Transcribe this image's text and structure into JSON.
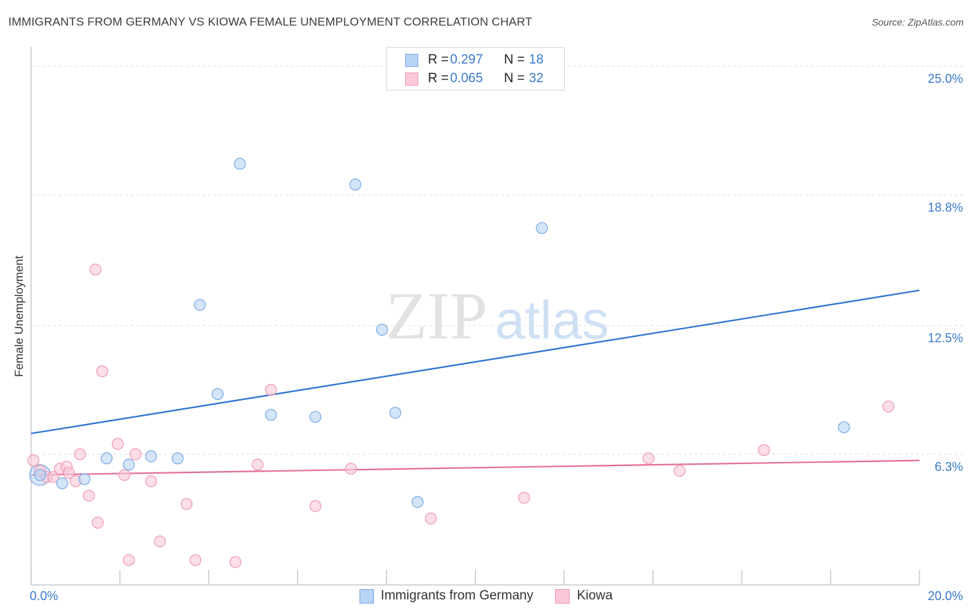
{
  "title": "IMMIGRANTS FROM GERMANY VS KIOWA FEMALE UNEMPLOYMENT CORRELATION CHART",
  "source": "Source: ZipAtlas.com",
  "watermark": {
    "zip": "ZIP",
    "atlas": "atlas"
  },
  "legend": {
    "r_label": "R =",
    "n_label": "N =",
    "series": [
      {
        "name": "Immigrants from Germany",
        "r": "0.297",
        "n": "18"
      },
      {
        "name": "Kiowa",
        "r": "0.065",
        "n": "32"
      }
    ]
  },
  "colors": {
    "germany_fill": "#b8d3f5",
    "germany_stroke": "#7aaae3",
    "germany_line": "#2f74d0",
    "kiowa_fill": "#f9c8d6",
    "kiowa_stroke": "#ee9ab4",
    "kiowa_line": "#e4709a",
    "axis_text": "#3a79cc"
  },
  "chart_data": {
    "type": "scatter",
    "title": "IMMIGRANTS FROM GERMANY VS KIOWA FEMALE UNEMPLOYMENT CORRELATION CHART",
    "xlabel": "",
    "ylabel": "Female Unemployment",
    "xlim": [
      0,
      20
    ],
    "ylim": [
      0,
      25.6
    ],
    "x_tick_labels": {
      "min": "0.0%",
      "max": "20.0%"
    },
    "y_ticks": [
      {
        "value": 6.3,
        "label": "6.3%"
      },
      {
        "value": 12.5,
        "label": "12.5%"
      },
      {
        "value": 18.8,
        "label": "18.8%"
      },
      {
        "value": 25.0,
        "label": "25.0%"
      }
    ],
    "series": [
      {
        "name": "Immigrants from Germany",
        "points": [
          {
            "x": 0.2,
            "y": 5.3
          },
          {
            "x": 0.7,
            "y": 4.9
          },
          {
            "x": 1.2,
            "y": 5.1
          },
          {
            "x": 1.7,
            "y": 6.1
          },
          {
            "x": 2.2,
            "y": 5.8
          },
          {
            "x": 2.7,
            "y": 6.2
          },
          {
            "x": 3.3,
            "y": 6.1
          },
          {
            "x": 3.8,
            "y": 13.5
          },
          {
            "x": 4.2,
            "y": 9.2
          },
          {
            "x": 4.7,
            "y": 20.3
          },
          {
            "x": 5.4,
            "y": 8.2
          },
          {
            "x": 6.4,
            "y": 8.1
          },
          {
            "x": 7.3,
            "y": 19.3
          },
          {
            "x": 7.9,
            "y": 12.3
          },
          {
            "x": 8.2,
            "y": 8.3
          },
          {
            "x": 8.7,
            "y": 4.0
          },
          {
            "x": 11.5,
            "y": 17.2
          },
          {
            "x": 18.3,
            "y": 7.6
          }
        ],
        "trend": {
          "x": [
            0,
            20
          ],
          "y": [
            7.3,
            14.2
          ]
        }
      },
      {
        "name": "Kiowa",
        "points": [
          {
            "x": 0.05,
            "y": 6.0
          },
          {
            "x": 0.2,
            "y": 5.5
          },
          {
            "x": 0.35,
            "y": 5.2
          },
          {
            "x": 0.5,
            "y": 5.2
          },
          {
            "x": 0.65,
            "y": 5.6
          },
          {
            "x": 0.8,
            "y": 5.7
          },
          {
            "x": 0.85,
            "y": 5.4
          },
          {
            "x": 1.0,
            "y": 5.0
          },
          {
            "x": 1.1,
            "y": 6.3
          },
          {
            "x": 1.3,
            "y": 4.3
          },
          {
            "x": 1.5,
            "y": 3.0
          },
          {
            "x": 1.45,
            "y": 15.2
          },
          {
            "x": 1.6,
            "y": 10.3
          },
          {
            "x": 1.95,
            "y": 6.8
          },
          {
            "x": 2.1,
            "y": 5.3
          },
          {
            "x": 2.2,
            "y": 1.2
          },
          {
            "x": 2.35,
            "y": 6.3
          },
          {
            "x": 2.7,
            "y": 5.0
          },
          {
            "x": 2.9,
            "y": 2.1
          },
          {
            "x": 3.5,
            "y": 3.9
          },
          {
            "x": 3.7,
            "y": 1.2
          },
          {
            "x": 4.6,
            "y": 1.1
          },
          {
            "x": 5.1,
            "y": 5.8
          },
          {
            "x": 5.4,
            "y": 9.4
          },
          {
            "x": 6.4,
            "y": 3.8
          },
          {
            "x": 7.2,
            "y": 5.6
          },
          {
            "x": 9.0,
            "y": 3.2
          },
          {
            "x": 11.1,
            "y": 4.2
          },
          {
            "x": 13.9,
            "y": 6.1
          },
          {
            "x": 14.6,
            "y": 5.5
          },
          {
            "x": 16.5,
            "y": 6.5
          },
          {
            "x": 19.3,
            "y": 8.6
          }
        ],
        "trend": {
          "x": [
            0,
            20
          ],
          "y": [
            5.3,
            6.0
          ]
        }
      }
    ]
  }
}
